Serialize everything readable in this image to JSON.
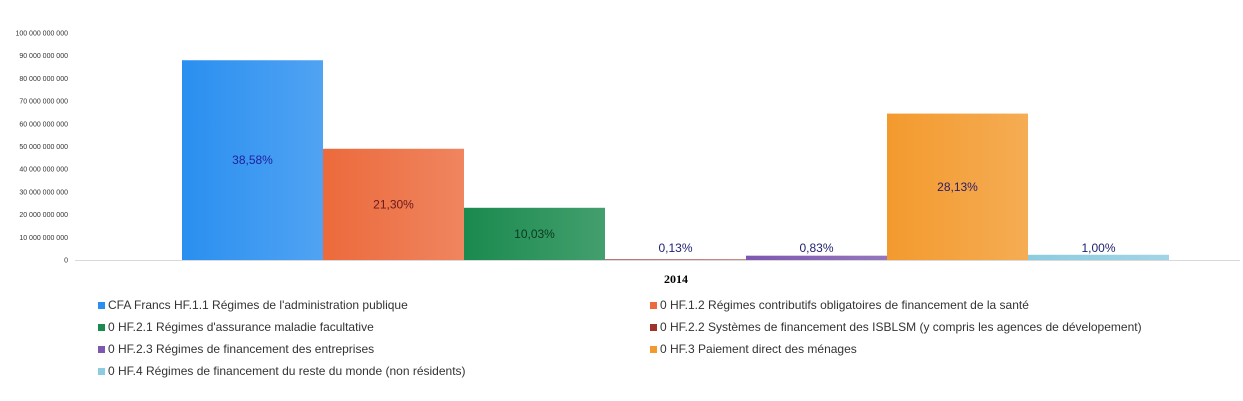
{
  "chart_data": {
    "type": "bar",
    "categories": [
      "2014"
    ],
    "ylim": [
      0,
      100000000000
    ],
    "yticks": [
      "0",
      "10 000 000 000",
      "20 000 000 000",
      "30 000 000 000",
      "40 000 000 000",
      "50 000 000 000",
      "60 000 000 000",
      "70 000 000 000",
      "80 000 000 000",
      "90 000 000 000",
      "100 000 000 000"
    ],
    "grid": false,
    "legend_position": "bottom",
    "series": [
      {
        "name": "CFA Francs HF.1.1 Régimes de l'administration publique",
        "values": [
          88000000000
        ],
        "label": "38,58%",
        "color": "#2a8ff0",
        "label_color": "#1f1f9e"
      },
      {
        "name": "0 HF.1.2 Régimes contributifs obligatoires de financement de la santé",
        "values": [
          49000000000
        ],
        "label": "21,30%",
        "color": "#ec6a3c",
        "label_color": "#6b1a1a"
      },
      {
        "name": "0 HF.2.1 Régimes d'assurance maladie facultative",
        "values": [
          23000000000
        ],
        "label": "10,03%",
        "color": "#1a8a4e",
        "label_color": "#0b3a1f"
      },
      {
        "name": "0 HF.2.2 Systèmes de financement des ISBLSM (y compris les agences de dévelopement)",
        "values": [
          300000000
        ],
        "label": "0,13%",
        "color": "#a0322c",
        "label_color": "#1f1f6e"
      },
      {
        "name": "0 HF.2.3 Régimes de financement des entreprises",
        "values": [
          1900000000
        ],
        "label": "0,83%",
        "color": "#7e57b0",
        "label_color": "#1f1f6e"
      },
      {
        "name": "0 HF.3 Paiement direct des ménages",
        "values": [
          64500000000
        ],
        "label": "28,13%",
        "color": "#f39a2e",
        "label_color": "#2a1a6e"
      },
      {
        "name": "0 HF.4 Régimes de financement du reste du monde (non résidents)",
        "values": [
          2300000000
        ],
        "label": "1,00%",
        "color": "#8dcbe0",
        "label_color": "#1f1f6e"
      }
    ]
  }
}
